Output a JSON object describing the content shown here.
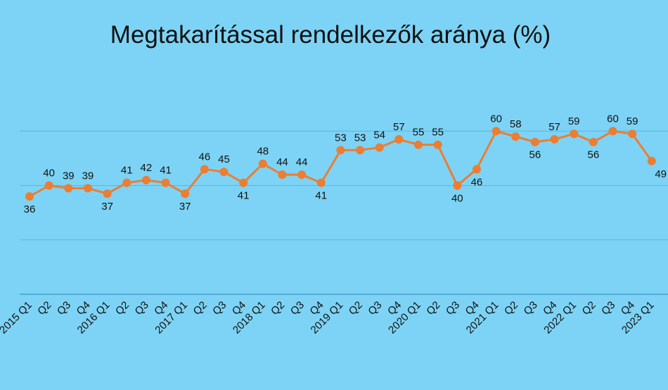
{
  "chart_data": {
    "type": "line",
    "title": "Megtakarítással rendelkezők aránya (%)",
    "xlabel": "",
    "ylabel": "",
    "ylim": [
      0,
      80
    ],
    "grid": true,
    "categories": [
      "2015 Q1",
      "Q2",
      "Q3",
      "Q4",
      "2016 Q1",
      "Q2",
      "Q3",
      "Q4",
      "2017 Q1",
      "Q2",
      "Q3",
      "Q4",
      "2018 Q1",
      "Q2",
      "Q3",
      "Q4",
      "2019 Q1",
      "Q2",
      "Q3",
      "Q4",
      "2020 Q1",
      "Q2",
      "Q3",
      "Q4",
      "2021 Q1",
      "Q2",
      "Q3",
      "Q4",
      "2022 Q1",
      "Q2",
      "Q3",
      "Q4",
      "2023 Q1"
    ],
    "series": [
      {
        "values": [
          36,
          40,
          39,
          39,
          37,
          41,
          42,
          41,
          37,
          46,
          45,
          41,
          48,
          44,
          44,
          41,
          53,
          53,
          54,
          57,
          55,
          55,
          40,
          46,
          60,
          58,
          56,
          57,
          59,
          56,
          60,
          59,
          49
        ],
        "label_pos": [
          "below",
          "above",
          "above",
          "above",
          "below",
          "above",
          "above",
          "above",
          "below",
          "above",
          "above",
          "below",
          "above",
          "above",
          "above",
          "below",
          "above",
          "above",
          "above",
          "above",
          "above",
          "above",
          "below",
          "below",
          "above",
          "above",
          "below",
          "above",
          "above",
          "below",
          "above",
          "above",
          "below"
        ]
      }
    ],
    "colors": {
      "background": "#7dd3f5",
      "line": "#ed7d31",
      "grid": "#5fb3e0",
      "axis": "#4a9fd0"
    }
  }
}
